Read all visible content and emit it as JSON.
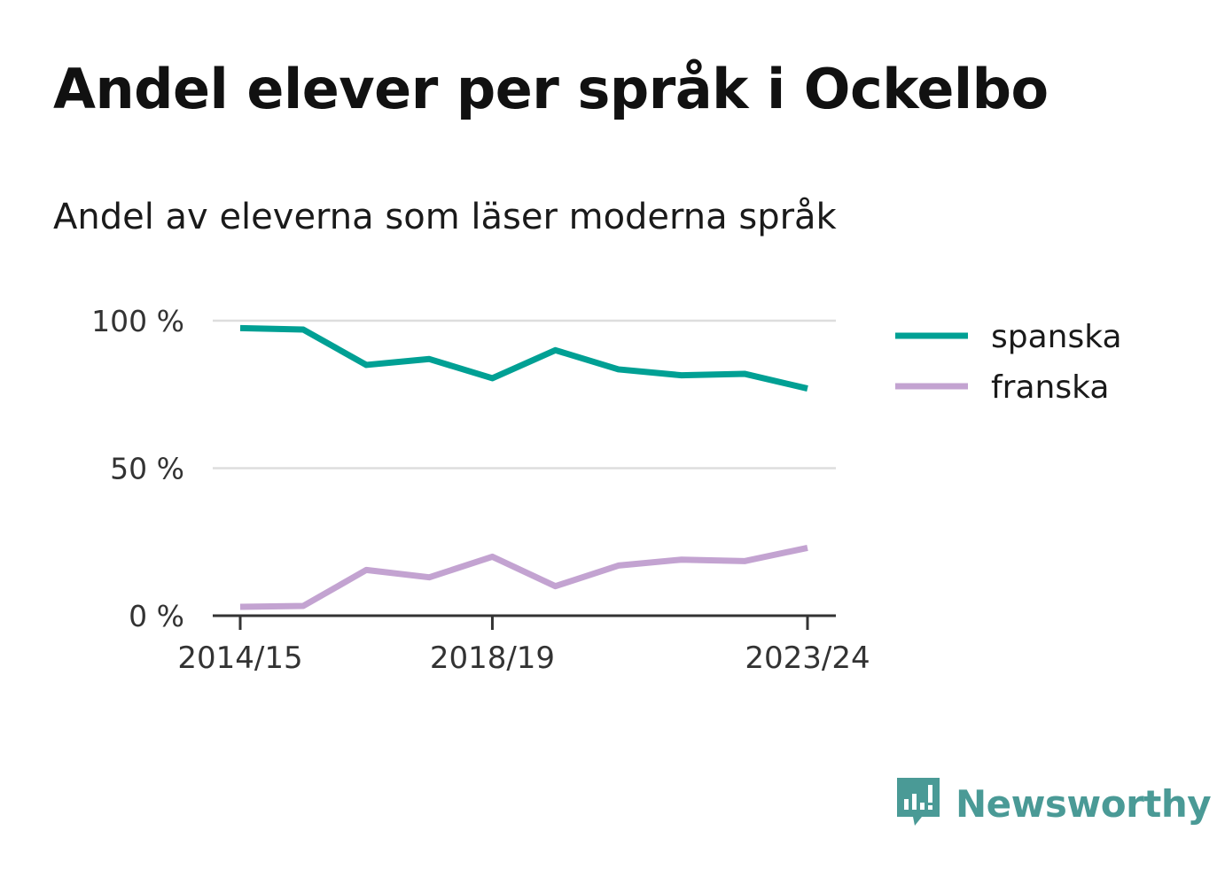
{
  "title": "Andel elever per språk i Ockelbo",
  "subtitle": "Andel av eleverna som läser moderna språk",
  "brand": "Newsworthy",
  "colors": {
    "spanska": "#00a094",
    "franska": "#c3a3d1",
    "grid": "#dddddd",
    "axis": "#333333"
  },
  "chart_data": {
    "type": "line",
    "x": [
      "2014/15",
      "2015/16",
      "2016/17",
      "2017/18",
      "2018/19",
      "2019/20",
      "2020/21",
      "2021/22",
      "2022/23",
      "2023/24"
    ],
    "x_tick_labels": [
      "2014/15",
      "2018/19",
      "2023/24"
    ],
    "y_ticks": [
      0,
      50,
      100
    ],
    "y_tick_labels": [
      "0 %",
      "50 %",
      "100 %"
    ],
    "ylim": [
      0,
      100
    ],
    "grid": true,
    "legend_position": "right",
    "series": [
      {
        "name": "spanska",
        "values": [
          97.5,
          97,
          85,
          87,
          80.5,
          90,
          83.5,
          81.5,
          82,
          77
        ]
      },
      {
        "name": "franska",
        "values": [
          3,
          3.3,
          15.5,
          13,
          20,
          10,
          17,
          19,
          18.5,
          23
        ]
      }
    ]
  }
}
